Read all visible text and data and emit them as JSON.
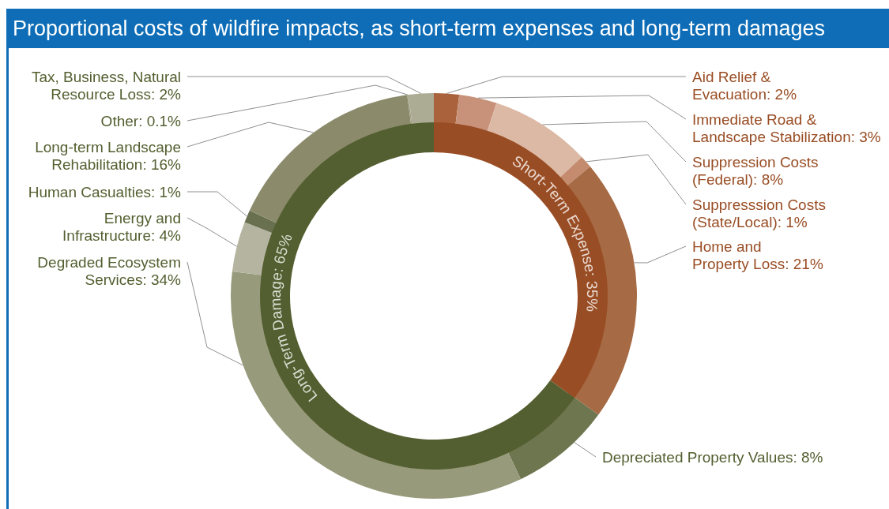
{
  "chart_data": [
    {
      "type": "donut",
      "title": "Proportional costs of wildfire impacts, as short-term expenses and long-term damages",
      "categories": [
        "Aid Relief & Evacuation: 2%",
        "Immediate Road & Landscape Stabilization: 3%",
        "Suppression Costs (Federal): 8%",
        "Suppresssion Costs (State/Local): 1%",
        "Home and Property Loss: 21%",
        "Depreciated Property Values: 8%",
        "Degraded Ecosystem Services: 34%",
        "Energy and Infrastructure: 4%",
        "Human Casualties: 1%",
        "Long-term Landscape Rehabilitation: 16%",
        "Other: 0.1%",
        "Tax, Business, Natural Resource Loss: 2%"
      ],
      "values": [
        2,
        3,
        8,
        1,
        21,
        8,
        34,
        4,
        1,
        16,
        0.1,
        2
      ],
      "colors": [
        "#a9623b",
        "#c8927a",
        "#dcb9a4",
        "#c48b6e",
        "#a66a44",
        "#6e7650",
        "#989a7c",
        "#b5b4a0",
        "#687050",
        "#8b8b6c",
        "#a3a288",
        "#acab93"
      ]
    },
    {
      "type": "donut",
      "categories": [
        "Short-Term Expense: 35%",
        "Long-Term Damage: 65%"
      ],
      "values": [
        35,
        65
      ],
      "colors": [
        "#994d24",
        "#535f30"
      ]
    }
  ]
}
